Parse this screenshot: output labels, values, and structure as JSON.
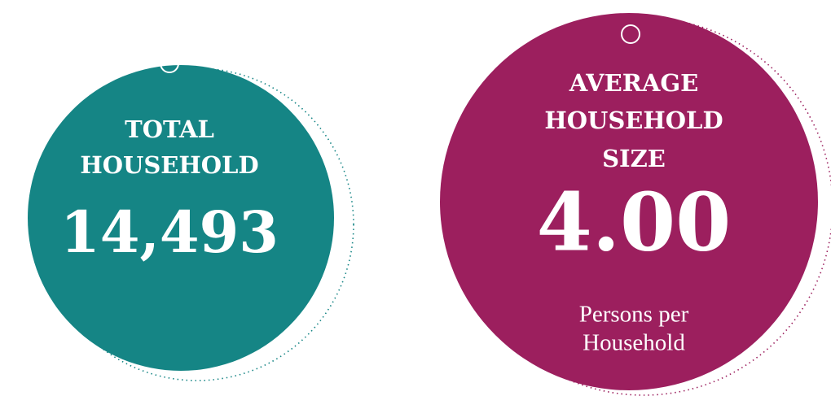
{
  "cards": [
    {
      "title": [
        "TOTAL",
        "HOUSEHOLD"
      ],
      "value": "14,493"
    },
    {
      "title": [
        "AVERAGE",
        "HOUSEHOLD",
        "SIZE"
      ],
      "value": "4.00",
      "unit": [
        "Persons per",
        "Household"
      ]
    }
  ]
}
